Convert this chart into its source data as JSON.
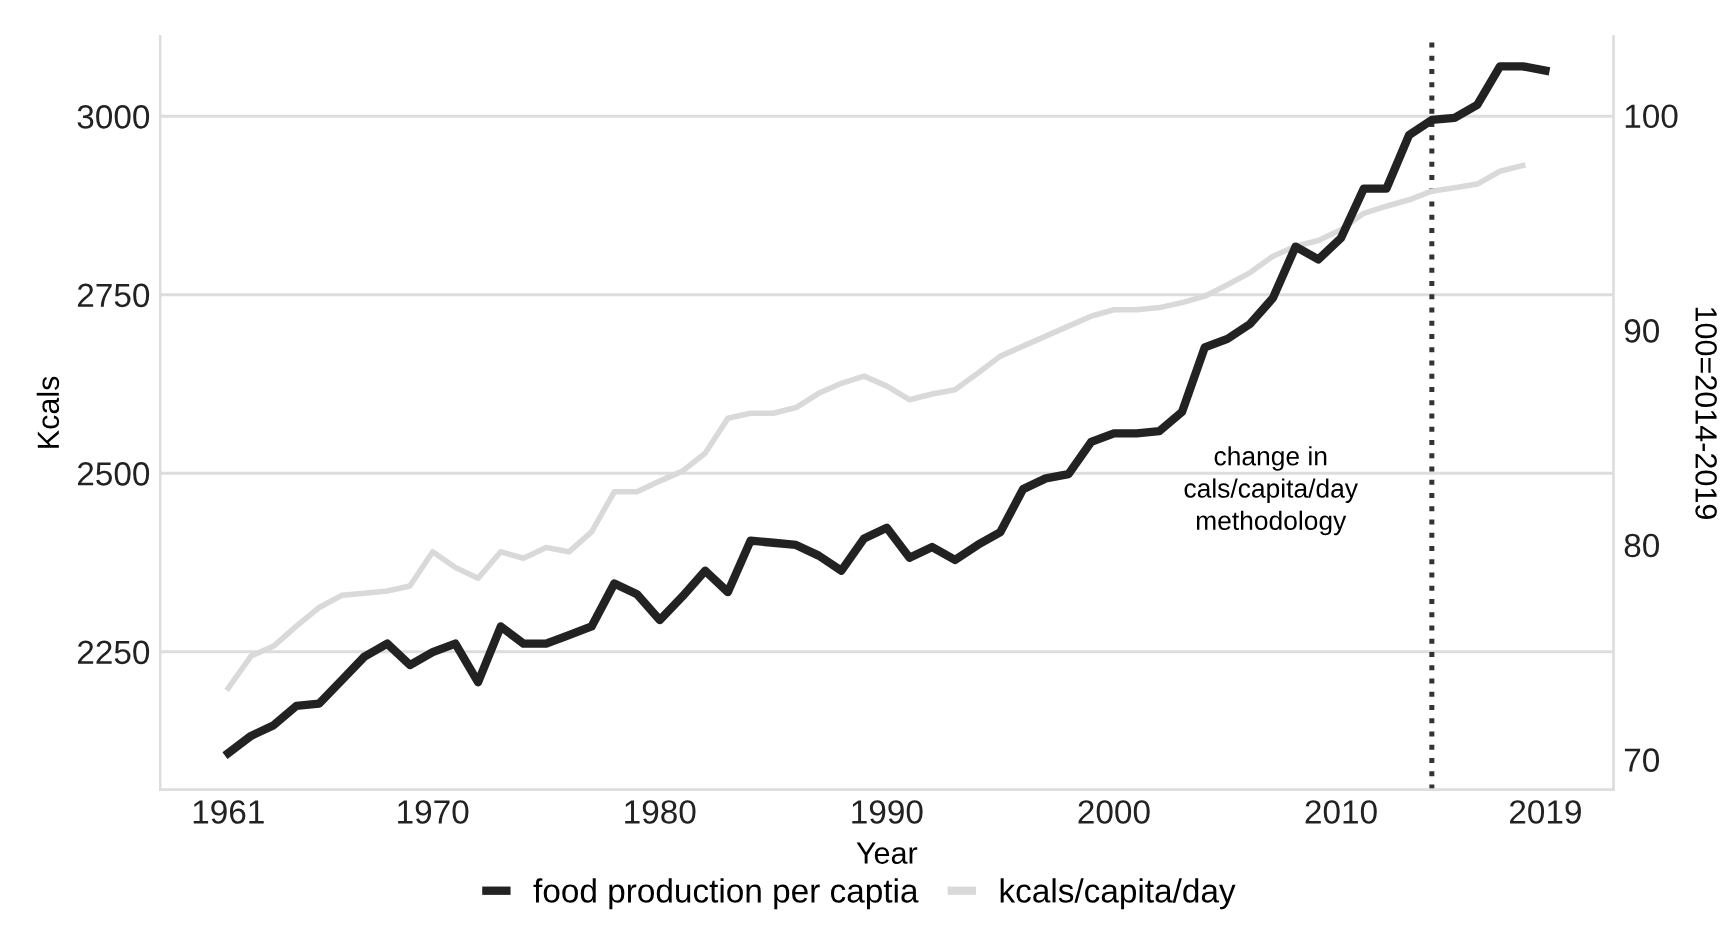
{
  "chart_data": {
    "type": "line",
    "xlabel": "Year",
    "ylabel": "Kcals",
    "y2label": "100=2014-2019",
    "x": [
      1961,
      1962,
      1963,
      1964,
      1965,
      1966,
      1967,
      1968,
      1969,
      1970,
      1971,
      1972,
      1973,
      1974,
      1975,
      1976,
      1977,
      1978,
      1979,
      1980,
      1981,
      1982,
      1983,
      1984,
      1985,
      1986,
      1987,
      1988,
      1989,
      1990,
      1991,
      1992,
      1993,
      1994,
      1995,
      1996,
      1997,
      1998,
      1999,
      2000,
      2001,
      2002,
      2003,
      2004,
      2005,
      2006,
      2007,
      2008,
      2009,
      2010,
      2011,
      2012,
      2013,
      2014,
      2015,
      2016,
      2017,
      2018,
      2019
    ],
    "series": [
      {
        "name": "food production per captia",
        "color": "#222222",
        "axis": "y2",
        "values": [
          70.3,
          71.1,
          71.6,
          72.5,
          72.6,
          73.7,
          74.8,
          75.4,
          74.4,
          75.0,
          75.4,
          73.6,
          76.2,
          75.4,
          75.4,
          75.8,
          76.2,
          78.2,
          77.7,
          76.5,
          77.6,
          78.8,
          77.8,
          80.2,
          80.1,
          80.0,
          79.5,
          78.8,
          80.3,
          80.8,
          79.4,
          79.9,
          79.3,
          80.0,
          80.6,
          82.6,
          83.1,
          83.3,
          84.8,
          85.2,
          85.2,
          85.3,
          86.2,
          89.2,
          89.6,
          90.3,
          91.5,
          93.9,
          93.3,
          94.3,
          96.6,
          96.6,
          99.1,
          99.8,
          99.9,
          100.5,
          102.3,
          102.3,
          102.1
        ]
      },
      {
        "name": "kcals/capita/day",
        "color": "#d9d9d9",
        "values": [
          2199,
          2244,
          2258,
          2286,
          2312,
          2329,
          2332,
          2335,
          2342,
          2390,
          2368,
          2353,
          2390,
          2381,
          2396,
          2390,
          2418,
          2474,
          2474,
          2489,
          2503,
          2528,
          2577,
          2584,
          2584,
          2592,
          2612,
          2626,
          2636,
          2622,
          2603,
          2611,
          2617,
          2640,
          2664,
          2678,
          2692,
          2706,
          2720,
          2729,
          2729,
          2732,
          2739,
          2748,
          2764,
          2781,
          2804,
          2818,
          2826,
          2841,
          2864,
          2874,
          2883,
          2895,
          2900,
          2905,
          2923,
          2931,
          null
        ]
      }
    ],
    "xlim": [
      1958,
      2022
    ],
    "xticks": [
      1961,
      1970,
      1980,
      1990,
      2000,
      2010,
      2019
    ],
    "ylim": [
      2057,
      3112
    ],
    "yticks": [
      2250,
      2500,
      2750,
      3000
    ],
    "y2lim": [
      68.6,
      103.7
    ],
    "y2ticks": [
      70,
      80,
      90,
      100
    ],
    "ref_lines": [
      {
        "axis": "x",
        "value": 2014,
        "label": "change in\ncals/capita/day\nmethodology",
        "color": "#333333",
        "line_style": "dotted"
      }
    ],
    "grid": "y",
    "legend": "bottom",
    "line_style": "solid",
    "marker": "none"
  }
}
